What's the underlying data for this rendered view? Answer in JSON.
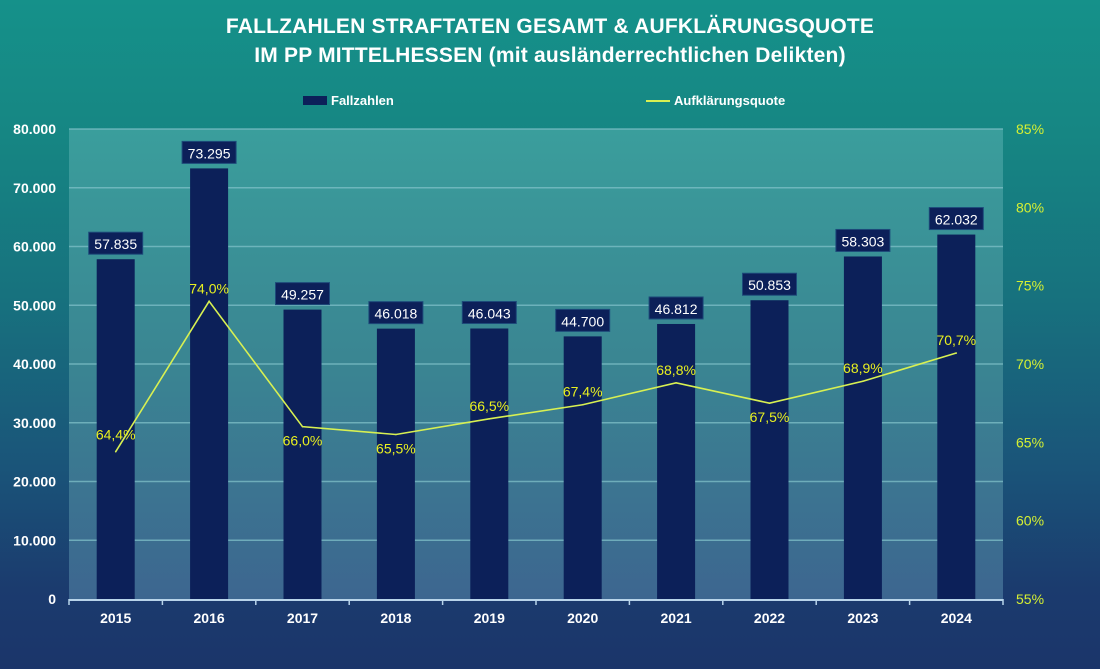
{
  "chart_data": {
    "type": "bar",
    "title": [
      "FALLZAHLEN STRAFTATEN GESAMT & AUFKLÄRUNGSQUOTE",
      "IM PP MITTELHESSEN (mit ausländerrechtlichen Delikten)"
    ],
    "categories": [
      "2015",
      "2016",
      "2017",
      "2018",
      "2019",
      "2020",
      "2021",
      "2022",
      "2023",
      "2024"
    ],
    "series": [
      {
        "name": "Fallzahlen",
        "type": "bar",
        "axis": "left",
        "color": "#0c2059",
        "values": [
          57835,
          73295,
          49257,
          46018,
          46043,
          44700,
          46812,
          50853,
          58303,
          62032
        ],
        "labels": [
          "57.835",
          "73.295",
          "49.257",
          "46.018",
          "46.043",
          "44.700",
          "46.812",
          "50.853",
          "58.303",
          "62.032"
        ]
      },
      {
        "name": "Aufklärungsquote",
        "type": "line",
        "axis": "right",
        "color": "#d8f052",
        "values": [
          64.4,
          74.0,
          66.0,
          65.5,
          66.5,
          67.4,
          68.8,
          67.5,
          68.9,
          70.7
        ],
        "labels": [
          "64,4%",
          "74,0%",
          "66,0%",
          "65,5%",
          "66,5%",
          "67,4%",
          "68,8%",
          "67,5%",
          "68,9%",
          "70,7%"
        ]
      }
    ],
    "y_left": {
      "range": [
        0,
        80000
      ],
      "ticks": [
        0,
        10000,
        20000,
        30000,
        40000,
        50000,
        60000,
        70000,
        80000
      ],
      "tick_labels": [
        "0",
        "10.000",
        "20.000",
        "30.000",
        "40.000",
        "50.000",
        "60.000",
        "70.000",
        "80.000"
      ]
    },
    "y_right": {
      "range": [
        55,
        85
      ],
      "ticks": [
        55,
        60,
        65,
        70,
        75,
        80,
        85
      ],
      "tick_labels": [
        "55%",
        "60%",
        "65%",
        "70%",
        "75%",
        "80%",
        "85%"
      ]
    },
    "xlabel": "",
    "ylabel": "",
    "grid": true,
    "legend": {
      "placement": "top",
      "items": [
        "Fallzahlen",
        "Aufklärungsquote"
      ]
    }
  }
}
